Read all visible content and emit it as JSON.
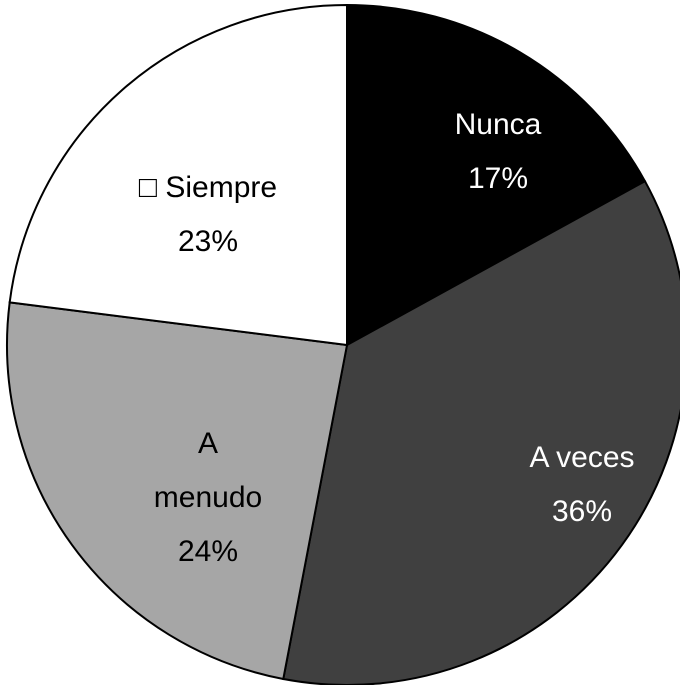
{
  "chart_data": {
    "type": "pie",
    "categories": [
      "Nunca",
      "A veces",
      "A menudo",
      "□ Siempre"
    ],
    "values": [
      17,
      36,
      24,
      23
    ],
    "value_labels": [
      "17%",
      "36%",
      "24%",
      "23%"
    ],
    "colors": [
      "#000000",
      "#404040",
      "#a6a6a6",
      "#ffffff"
    ],
    "label_colors": [
      "#ffffff",
      "#ffffff",
      "#000000",
      "#000000"
    ]
  }
}
